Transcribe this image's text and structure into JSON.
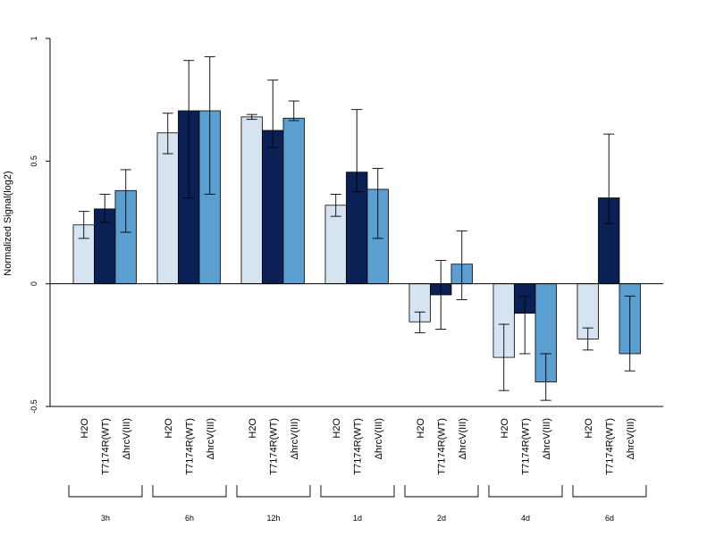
{
  "chart_data": {
    "type": "bar",
    "ylabel": "Normalized Signal(log2)",
    "ylim": [
      -0.5,
      1
    ],
    "yticks": [
      -0.5,
      0,
      0.5,
      1
    ],
    "ytick_labels": [
      "-0.5",
      "0",
      "0.5",
      "1"
    ],
    "groups": [
      "3h",
      "6h",
      "12h",
      "1d",
      "2d",
      "4d",
      "6d"
    ],
    "bar_labels": [
      "H2O",
      "T7174R(WT)",
      "ΔhrcV(III)"
    ],
    "series": [
      {
        "name": "H2O",
        "color": "#d6e4f2",
        "values": [
          0.24,
          0.615,
          0.68,
          0.32,
          -0.155,
          -0.3,
          -0.225
        ],
        "err_low": [
          0.185,
          0.53,
          0.67,
          0.275,
          -0.2,
          -0.435,
          -0.27
        ],
        "err_high": [
          0.295,
          0.695,
          0.69,
          0.365,
          -0.115,
          -0.165,
          -0.18
        ]
      },
      {
        "name": "T7174R(WT)",
        "color": "#0b2156",
        "values": [
          0.305,
          0.705,
          0.625,
          0.455,
          -0.045,
          -0.12,
          0.35
        ],
        "err_low": [
          0.25,
          0.35,
          0.555,
          0.375,
          -0.185,
          -0.285,
          0.245
        ],
        "err_high": [
          0.365,
          0.91,
          0.83,
          0.71,
          0.095,
          -0.05,
          0.61
        ]
      },
      {
        "name": "ΔhrcV(III)",
        "color": "#5a9fd0",
        "values": [
          0.38,
          0.705,
          0.675,
          0.385,
          0.08,
          -0.4,
          -0.285
        ],
        "err_low": [
          0.21,
          0.365,
          0.665,
          0.185,
          -0.065,
          -0.475,
          -0.355
        ],
        "err_high": [
          0.465,
          0.925,
          0.745,
          0.47,
          0.215,
          -0.285,
          -0.05
        ]
      }
    ],
    "grid": false,
    "legend": "none"
  }
}
